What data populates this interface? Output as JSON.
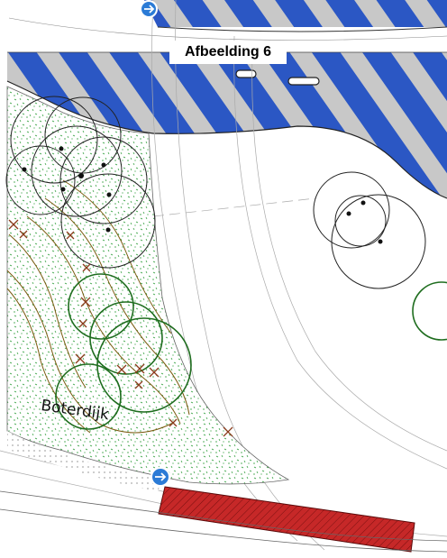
{
  "figure": {
    "caption": "Afbeelding 6"
  },
  "map": {
    "street_label": "Boterdijk",
    "legend_colors": {
      "road_stripe_blue": "#2b57c4",
      "road_stripe_grey": "#c8c8c8",
      "removal_hatch_red": "#c62828",
      "vegetation_green": "#2e9e3a",
      "tree_removed_brown": "#8a3a1a",
      "contour_brown": "#7a5a10",
      "tree_canopy_dark_green": "#1f6d1f"
    },
    "icons": [
      "direction-sign-icon-top",
      "direction-sign-icon-bottom"
    ]
  }
}
